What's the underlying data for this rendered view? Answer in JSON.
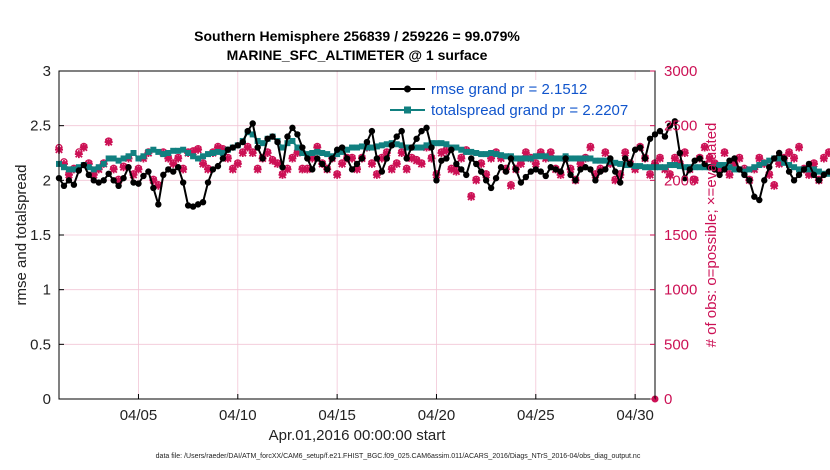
{
  "chart_data": {
    "type": "line",
    "title_line1": "Southern Hemisphere 256839 / 259226 = 99.079%",
    "title_line2": "MARINE_SFC_ALTIMETER @ 1 surface",
    "xlabel": "Apr.01,2016 00:00:00 start",
    "ylabel_left": "rmse and totalspread",
    "ylabel_right": "# of obs: o=possible; ×=evaluated",
    "footer": "data file: /Users/raeder/DAI/ATM_forcXX/CAM6_setup/f.e21.FHIST_BGC.f09_025.CAM6assim.011/ACARS_2016/Diags_NTrS_2016-04/obs_diag_output.nc",
    "xlim": [
      1,
      31
    ],
    "ylim_left": [
      0,
      3
    ],
    "ylim_right": [
      0,
      3000
    ],
    "x_ticks": [
      {
        "value": 5,
        "label": "04/05"
      },
      {
        "value": 10,
        "label": "04/10"
      },
      {
        "value": 15,
        "label": "04/15"
      },
      {
        "value": 20,
        "label": "04/20"
      },
      {
        "value": 25,
        "label": "04/25"
      },
      {
        "value": 30,
        "label": "04/30"
      }
    ],
    "y_ticks_left": [
      "0",
      "0.5",
      "1",
      "1.5",
      "2",
      "2.5",
      "3"
    ],
    "y_ticks_right": [
      "0",
      "500",
      "1000",
      "1500",
      "2000",
      "2500",
      "3000"
    ],
    "x_step": 0.25,
    "series": [
      {
        "name": "rmse grand pr = 2.1512",
        "color": "#000000",
        "axis": "left",
        "marker": "dot",
        "values": [
          2.02,
          1.95,
          2.0,
          1.96,
          2.09,
          2.14,
          2.05,
          2.0,
          1.98,
          2.0,
          2.06,
          2.0,
          1.95,
          2.02,
          2.12,
          1.98,
          1.97,
          2.04,
          2.08,
          1.93,
          1.78,
          2.05,
          2.1,
          2.08,
          2.12,
          1.98,
          1.77,
          1.76,
          1.78,
          1.8,
          1.98,
          2.1,
          2.13,
          2.2,
          2.28,
          2.3,
          2.32,
          2.35,
          2.45,
          2.52,
          2.3,
          2.2,
          2.38,
          2.4,
          2.35,
          2.12,
          2.4,
          2.48,
          2.42,
          2.3,
          2.2,
          2.1,
          2.2,
          2.15,
          2.1,
          2.2,
          2.28,
          2.3,
          2.2,
          2.1,
          2.15,
          2.2,
          2.35,
          2.45,
          2.2,
          2.08,
          2.2,
          2.32,
          2.4,
          2.45,
          2.2,
          2.3,
          2.38,
          2.45,
          2.48,
          2.3,
          2.0,
          2.18,
          2.2,
          2.28,
          2.15,
          2.1,
          2.05,
          2.2,
          2.15,
          2.08,
          2.0,
          1.93,
          2.02,
          2.12,
          2.08,
          2.2,
          2.1,
          1.98,
          2.03,
          2.08,
          2.1,
          2.08,
          2.04,
          2.12,
          2.1,
          2.08,
          2.2,
          2.05,
          2.0,
          2.1,
          2.12,
          2.1,
          2.0,
          2.08,
          2.1,
          2.2,
          2.08,
          1.98,
          2.2,
          2.15,
          2.28,
          2.3,
          2.2,
          2.38,
          2.42,
          2.45,
          2.4,
          2.5,
          2.54,
          2.25,
          2.02,
          2.1,
          2.18,
          2.2,
          2.15,
          2.12,
          2.1,
          2.05,
          2.1,
          2.18,
          2.2,
          2.1,
          2.05,
          2.0,
          1.85,
          1.82,
          2.0,
          2.12,
          2.2,
          2.25,
          2.2,
          2.08,
          2.0,
          2.05,
          2.1,
          2.15,
          2.05,
          2.0,
          2.05,
          2.08,
          2.03,
          2.0,
          1.98,
          2.0,
          2.06,
          2.1,
          2.15,
          1.96,
          2.02
        ]
      },
      {
        "name": "totalspread grand pr = 2.2207",
        "color": "#118080",
        "axis": "left",
        "marker": "square",
        "values": [
          2.15,
          2.12,
          2.1,
          2.1,
          2.12,
          2.14,
          2.12,
          2.1,
          2.12,
          2.15,
          2.2,
          2.2,
          2.18,
          2.2,
          2.22,
          2.25,
          2.2,
          2.22,
          2.26,
          2.28,
          2.26,
          2.24,
          2.25,
          2.27,
          2.27,
          2.28,
          2.25,
          2.22,
          2.2,
          2.22,
          2.24,
          2.25,
          2.26,
          2.25,
          2.28,
          2.3,
          2.32,
          2.36,
          2.44,
          2.42,
          2.36,
          2.34,
          2.38,
          2.4,
          2.36,
          2.3,
          2.34,
          2.36,
          2.3,
          2.25,
          2.24,
          2.25,
          2.26,
          2.25,
          2.24,
          2.22,
          2.24,
          2.26,
          2.28,
          2.3,
          2.3,
          2.31,
          2.3,
          2.3,
          2.31,
          2.32,
          2.33,
          2.34,
          2.33,
          2.32,
          2.3,
          2.3,
          2.3,
          2.3,
          2.32,
          2.34,
          2.34,
          2.34,
          2.33,
          2.3,
          2.3,
          2.28,
          2.26,
          2.26,
          2.25,
          2.24,
          2.24,
          2.25,
          2.24,
          2.23,
          2.22,
          2.22,
          2.2,
          2.2,
          2.2,
          2.2,
          2.22,
          2.22,
          2.22,
          2.2,
          2.2,
          2.2,
          2.22,
          2.2,
          2.2,
          2.2,
          2.2,
          2.2,
          2.18,
          2.18,
          2.18,
          2.17,
          2.16,
          2.15,
          2.14,
          2.14,
          2.13,
          2.13,
          2.12,
          2.12,
          2.12,
          2.12,
          2.12,
          2.14,
          2.14,
          2.13,
          2.12,
          2.12,
          2.12,
          2.12,
          2.12,
          2.12,
          2.12,
          2.14,
          2.14,
          2.12,
          2.1,
          2.1,
          2.08,
          2.1,
          2.12,
          2.14,
          2.16,
          2.18,
          2.2,
          2.2,
          2.16,
          2.14,
          2.12,
          2.1,
          2.1,
          2.1,
          2.1,
          2.08,
          2.06,
          2.06,
          2.08,
          2.08,
          2.1,
          2.1,
          2.08,
          2.08,
          2.08,
          2.06,
          2.06
        ]
      },
      {
        "name": "# of obs evaluated",
        "color": "#cc1155",
        "axis": "right",
        "marker": "x",
        "values": [
          2280,
          2150,
          2050,
          2100,
          2240,
          2300,
          2150,
          2050,
          2100,
          2150,
          2350,
          2100,
          2000,
          2120,
          2200,
          2050,
          2100,
          2200,
          2250,
          2000,
          1950,
          2250,
          2200,
          2150,
          2200,
          2100,
          2250,
          2260,
          2280,
          2150,
          2100,
          2250,
          2300,
          2280,
          2200,
          2100,
          2150,
          2250,
          2300,
          2250,
          2100,
          2200,
          2250,
          2180,
          2150,
          2050,
          2100,
          2200,
          2250,
          2100,
          2100,
          2200,
          2300,
          2150,
          2100,
          2200,
          2050,
          2150,
          2200,
          2200,
          2100,
          2200,
          2300,
          2150,
          2050,
          2200,
          2250,
          2100,
          2150,
          2250,
          2100,
          2200,
          2180,
          2150,
          2300,
          2200,
          2050,
          2250,
          2270,
          2100,
          2080,
          2200,
          2270,
          1850,
          2000,
          2150,
          2050,
          2200,
          2250,
          2200,
          2100,
          1950,
          2100,
          2150,
          2250,
          2200,
          2150,
          2250,
          2200,
          2250,
          2100,
          2050,
          2200,
          2100,
          2000,
          2150,
          2200,
          2300,
          2050,
          2100,
          2250,
          2150,
          2000,
          2050,
          2250,
          2150,
          2100,
          2300,
          2200,
          2050,
          2150,
          2200,
          2100,
          2050,
          2200,
          2150,
          2250,
          2100,
          2000,
          2200,
          2300,
          2200,
          2150,
          2100,
          2250,
          2050,
          2150,
          2200,
          2100,
          2000,
          2100,
          2200,
          2150,
          2050,
          1950,
          2150,
          2200,
          2250,
          2200,
          2300,
          2100,
          2050,
          2150,
          2000,
          2200,
          2250,
          2100,
          2150,
          2050,
          2100,
          2200,
          2250,
          2150,
          2050,
          2100
        ]
      },
      {
        "name": "# of obs possible",
        "color": "#cc1155",
        "axis": "right",
        "marker": "circle",
        "values": [
          2300,
          2170,
          2060,
          2110,
          2260,
          2310,
          2160,
          2060,
          2110,
          2160,
          2360,
          2110,
          2010,
          2130,
          2210,
          2060,
          2110,
          2210,
          2260,
          2010,
          1960,
          2260,
          2210,
          2160,
          2210,
          2110,
          2260,
          2270,
          2290,
          2160,
          2110,
          2260,
          2310,
          2290,
          2210,
          2110,
          2160,
          2260,
          2310,
          2260,
          2110,
          2210,
          2260,
          2190,
          2160,
          2060,
          2110,
          2210,
          2260,
          2110,
          2110,
          2210,
          2310,
          2160,
          2110,
          2210,
          2060,
          2160,
          2210,
          2210,
          2110,
          2210,
          2310,
          2160,
          2060,
          2210,
          2260,
          2110,
          2160,
          2260,
          2110,
          2210,
          2190,
          2160,
          2310,
          2210,
          2060,
          2260,
          2280,
          2110,
          2090,
          2210,
          2280,
          1860,
          2010,
          2160,
          2060,
          2210,
          2260,
          2210,
          2110,
          1960,
          2110,
          2160,
          2260,
          2210,
          2160,
          2260,
          2210,
          2260,
          2110,
          2060,
          2210,
          2110,
          2010,
          2160,
          2210,
          2310,
          2060,
          2110,
          2260,
          2160,
          2010,
          2060,
          2260,
          2160,
          2110,
          2310,
          2210,
          2060,
          2160,
          2210,
          2110,
          2060,
          2210,
          2160,
          2260,
          2110,
          2010,
          2210,
          2310,
          2210,
          2160,
          2110,
          2260,
          2060,
          2160,
          2210,
          2110,
          2010,
          2110,
          2210,
          2160,
          2060,
          1960,
          2160,
          2210,
          2260,
          2210,
          2310,
          2110,
          2060,
          2160,
          2010,
          2210,
          2260,
          2110,
          2160,
          2060,
          2110,
          2210,
          2260,
          2160,
          2060,
          2110
        ]
      }
    ],
    "legend": [
      {
        "label": "rmse grand pr = 2.1512",
        "color": "#000000",
        "marker": "dot"
      },
      {
        "label": "totalspread grand pr = 2.2207",
        "color": "#118080",
        "marker": "square"
      }
    ],
    "extra_point": {
      "x": 31,
      "value": 0,
      "axis": "right",
      "color": "#cc1155"
    }
  }
}
